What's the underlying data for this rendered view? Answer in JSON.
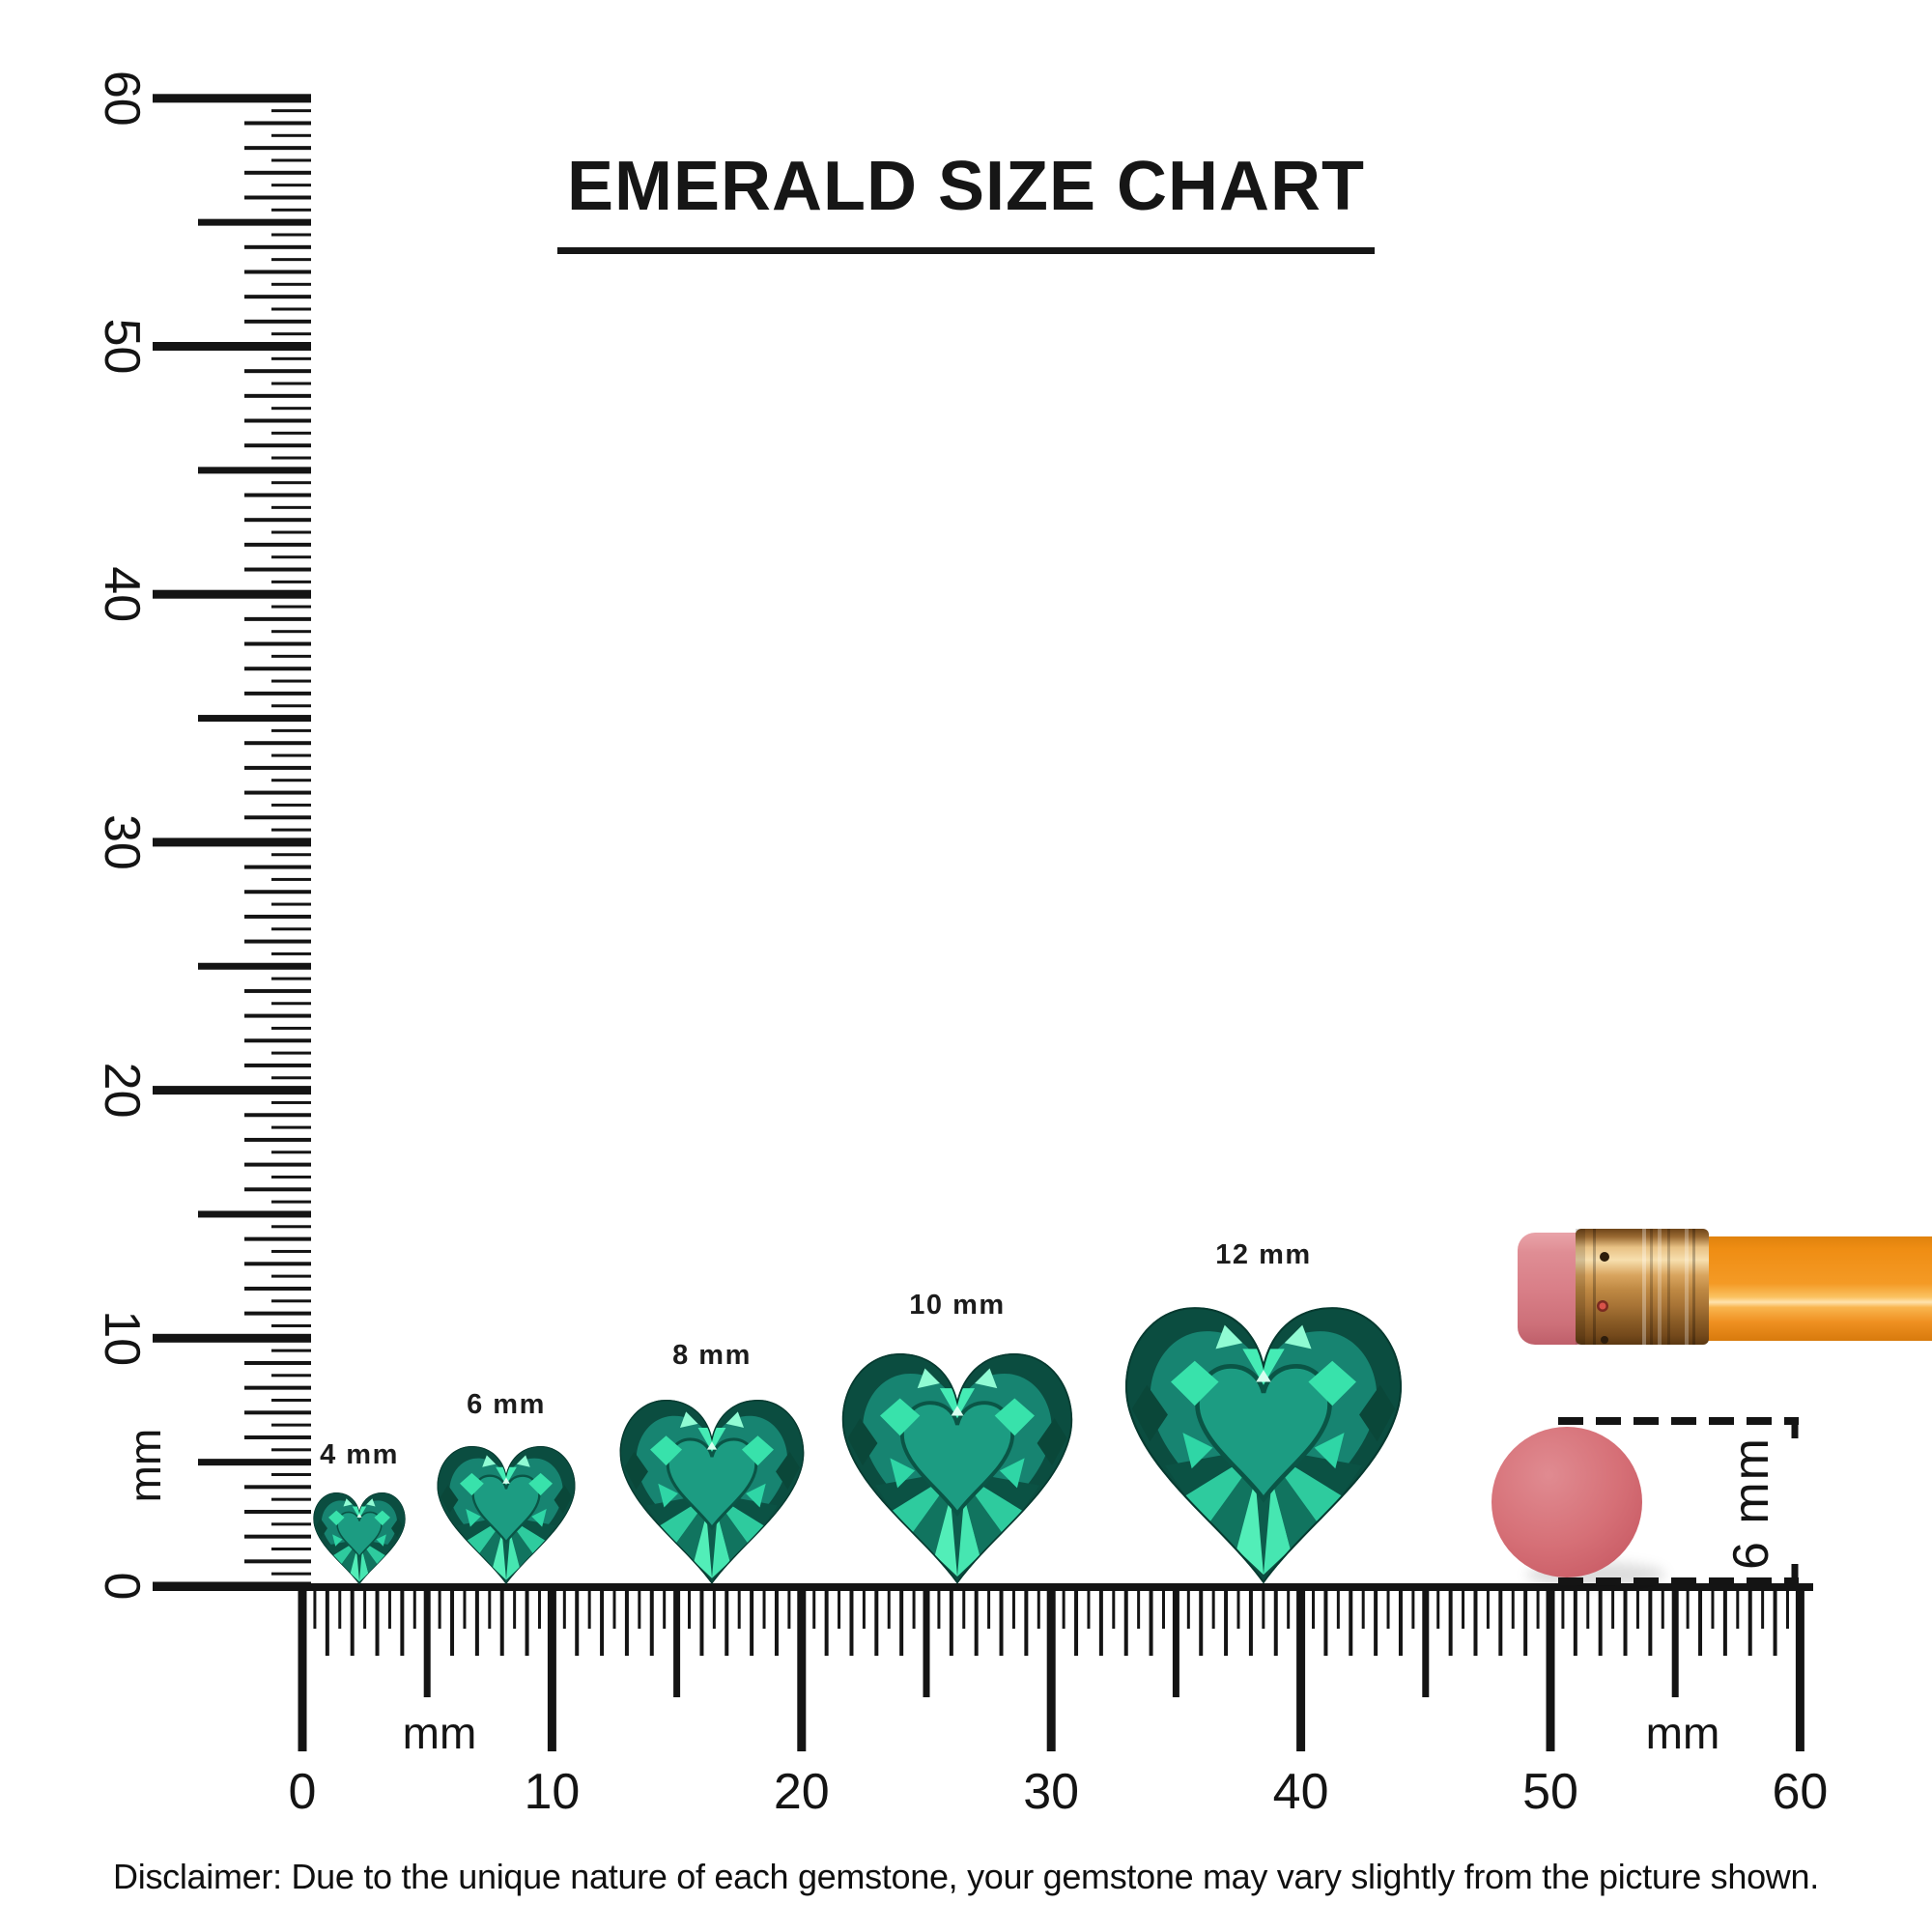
{
  "title": "EMERALD SIZE CHART",
  "disclaimer": "Disclaimer: Due to the unique nature of each gemstone, your gemstone may vary slightly from the picture shown.",
  "chart_data": {
    "type": "size-comparison",
    "subject": "heart-cut emerald gemstones",
    "unit": "mm",
    "gems": [
      {
        "label": "4 mm",
        "size_mm": 4
      },
      {
        "label": "6 mm",
        "size_mm": 6
      },
      {
        "label": "8 mm",
        "size_mm": 8
      },
      {
        "label": "10 mm",
        "size_mm": 10
      },
      {
        "label": "12 mm",
        "size_mm": 12
      }
    ],
    "vertical_ruler": {
      "min_mm": 0,
      "max_mm": 60,
      "tick_step_mm": 0.5,
      "major_tick_mm": 10,
      "labels": [
        "0",
        "10",
        "20",
        "30",
        "40",
        "50",
        "60"
      ],
      "unit_label": "mm"
    },
    "horizontal_ruler": {
      "min_mm": 0,
      "max_mm": 60,
      "tick_step_mm": 0.5,
      "major_tick_mm": 10,
      "labels": [
        "0",
        "10",
        "20",
        "30",
        "40",
        "50",
        "60"
      ],
      "unit_label_left": "mm",
      "unit_label_right": "mm"
    },
    "reference_objects": [
      {
        "name": "pencil with eraser end"
      },
      {
        "name": "round eraser",
        "diameter_label": "6 mm",
        "diameter_mm": 6
      }
    ]
  },
  "colors": {
    "ink": "#141414",
    "gem_base": "#11695a",
    "gem_dark": "#0a4f41",
    "gem_mid": "#178471",
    "gem_light": "#2ecb9e",
    "gem_bright": "#52eeb8",
    "gem_flash": "#90fbd3",
    "pencil_body": "#f49a25",
    "pencil_ferrule": "#d9a55f",
    "pencil_eraser": "#d97f88",
    "round_eraser": "#d67077"
  }
}
